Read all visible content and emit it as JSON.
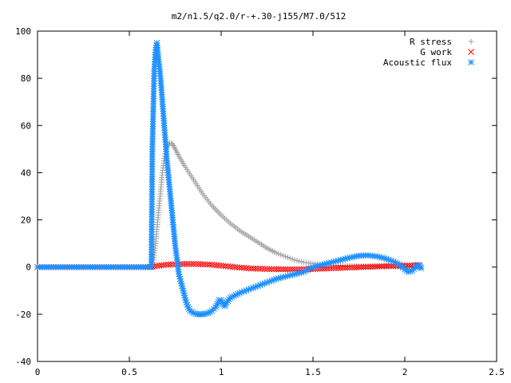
{
  "chart_data": {
    "type": "scatter",
    "title": "m2/n1.5/q2.0/r-+.30-j155/M7.0/512",
    "xlabel": "",
    "ylabel": "",
    "xlim": [
      0,
      2.5
    ],
    "ylim": [
      -40,
      100
    ],
    "x_ticks": [
      0,
      0.5,
      1,
      1.5,
      2,
      2.5
    ],
    "x_tick_labels": [
      "0",
      "0.5",
      "1",
      "1.5",
      "2",
      "2.5"
    ],
    "y_ticks": [
      -40,
      -20,
      0,
      20,
      40,
      60,
      80,
      100
    ],
    "y_tick_labels": [
      "-40",
      "-20",
      "0",
      "20",
      "40",
      "60",
      "80",
      "100"
    ],
    "grid": false,
    "legend_position": "top-right",
    "series": [
      {
        "name": "R stress",
        "marker": "plus",
        "color": "#a0a0a0",
        "points": [
          [
            0.0,
            0
          ],
          [
            0.1,
            0
          ],
          [
            0.2,
            0
          ],
          [
            0.3,
            0
          ],
          [
            0.4,
            0
          ],
          [
            0.5,
            0
          ],
          [
            0.6,
            0
          ],
          [
            0.62,
            0
          ],
          [
            0.635,
            4
          ],
          [
            0.64,
            8
          ],
          [
            0.645,
            12
          ],
          [
            0.65,
            16
          ],
          [
            0.655,
            20
          ],
          [
            0.66,
            24
          ],
          [
            0.665,
            28
          ],
          [
            0.67,
            32
          ],
          [
            0.675,
            36
          ],
          [
            0.68,
            40
          ],
          [
            0.685,
            43
          ],
          [
            0.69,
            46
          ],
          [
            0.695,
            48
          ],
          [
            0.7,
            50
          ],
          [
            0.71,
            51.5
          ],
          [
            0.72,
            52.5
          ],
          [
            0.73,
            52.5
          ],
          [
            0.74,
            51.5
          ],
          [
            0.75,
            50
          ],
          [
            0.77,
            47
          ],
          [
            0.8,
            43
          ],
          [
            0.85,
            37
          ],
          [
            0.9,
            31
          ],
          [
            0.95,
            26
          ],
          [
            1.0,
            22
          ],
          [
            1.05,
            18.5
          ],
          [
            1.1,
            15.5
          ],
          [
            1.15,
            13
          ],
          [
            1.2,
            10.5
          ],
          [
            1.25,
            8
          ],
          [
            1.3,
            6
          ],
          [
            1.35,
            4.5
          ],
          [
            1.4,
            3
          ],
          [
            1.45,
            2
          ],
          [
            1.5,
            1.5
          ],
          [
            1.55,
            1
          ],
          [
            1.6,
            0.8
          ],
          [
            1.7,
            0.5
          ],
          [
            1.8,
            0.3
          ],
          [
            1.9,
            0.2
          ],
          [
            2.0,
            0.1
          ],
          [
            2.08,
            0.05
          ]
        ]
      },
      {
        "name": "G work",
        "marker": "cross",
        "color": "#ff0000",
        "points": [
          [
            0.0,
            0
          ],
          [
            0.1,
            0
          ],
          [
            0.2,
            0
          ],
          [
            0.3,
            0
          ],
          [
            0.4,
            0
          ],
          [
            0.5,
            0
          ],
          [
            0.6,
            0
          ],
          [
            0.65,
            0.5
          ],
          [
            0.7,
            1
          ],
          [
            0.75,
            1.2
          ],
          [
            0.8,
            1.3
          ],
          [
            0.85,
            1.3
          ],
          [
            0.9,
            1.2
          ],
          [
            0.95,
            1.0
          ],
          [
            1.0,
            0.6
          ],
          [
            1.05,
            0.2
          ],
          [
            1.1,
            -0.2
          ],
          [
            1.15,
            -0.5
          ],
          [
            1.2,
            -0.7
          ],
          [
            1.3,
            -0.9
          ],
          [
            1.4,
            -1.0
          ],
          [
            1.5,
            -0.8
          ],
          [
            1.6,
            -0.5
          ],
          [
            1.7,
            -0.2
          ],
          [
            1.8,
            0.1
          ],
          [
            1.9,
            0.4
          ],
          [
            2.0,
            0.6
          ],
          [
            2.05,
            0.7
          ],
          [
            2.08,
            0.7
          ]
        ]
      },
      {
        "name": "Acoustic flux",
        "marker": "star",
        "color": "#1e90ff",
        "points": [
          [
            0.0,
            0
          ],
          [
            0.05,
            0
          ],
          [
            0.1,
            0
          ],
          [
            0.15,
            0
          ],
          [
            0.2,
            0
          ],
          [
            0.25,
            0
          ],
          [
            0.3,
            0
          ],
          [
            0.35,
            0
          ],
          [
            0.4,
            0
          ],
          [
            0.45,
            0
          ],
          [
            0.5,
            0
          ],
          [
            0.55,
            0
          ],
          [
            0.6,
            0
          ],
          [
            0.62,
            0
          ],
          [
            0.625,
            50
          ],
          [
            0.635,
            82
          ],
          [
            0.64,
            89
          ],
          [
            0.645,
            93
          ],
          [
            0.65,
            95
          ],
          [
            0.655,
            91
          ],
          [
            0.66,
            87
          ],
          [
            0.665,
            84
          ],
          [
            0.67,
            80
          ],
          [
            0.675,
            75
          ],
          [
            0.68,
            70
          ],
          [
            0.685,
            65
          ],
          [
            0.69,
            60
          ],
          [
            0.695,
            55
          ],
          [
            0.7,
            50
          ],
          [
            0.705,
            45
          ],
          [
            0.71,
            41
          ],
          [
            0.715,
            37
          ],
          [
            0.72,
            33
          ],
          [
            0.725,
            29
          ],
          [
            0.73,
            25
          ],
          [
            0.735,
            21
          ],
          [
            0.74,
            17
          ],
          [
            0.745,
            13
          ],
          [
            0.75,
            9
          ],
          [
            0.755,
            6
          ],
          [
            0.76,
            3
          ],
          [
            0.765,
            0
          ],
          [
            0.77,
            -3
          ],
          [
            0.78,
            -6
          ],
          [
            0.79,
            -9
          ],
          [
            0.8,
            -12
          ],
          [
            0.81,
            -15
          ],
          [
            0.82,
            -17
          ],
          [
            0.83,
            -18.5
          ],
          [
            0.85,
            -19.5
          ],
          [
            0.87,
            -20
          ],
          [
            0.9,
            -20
          ],
          [
            0.93,
            -19.5
          ],
          [
            0.95,
            -18.5
          ],
          [
            0.97,
            -17
          ],
          [
            0.98,
            -15.5
          ],
          [
            0.99,
            -14
          ],
          [
            1.0,
            -14
          ],
          [
            1.01,
            -15.5
          ],
          [
            1.02,
            -16.5
          ],
          [
            1.03,
            -15
          ],
          [
            1.05,
            -13
          ],
          [
            1.1,
            -11
          ],
          [
            1.15,
            -9.5
          ],
          [
            1.2,
            -8
          ],
          [
            1.25,
            -6.5
          ],
          [
            1.3,
            -5
          ],
          [
            1.35,
            -4
          ],
          [
            1.4,
            -3
          ],
          [
            1.45,
            -2
          ],
          [
            1.5,
            0
          ],
          [
            1.55,
            1
          ],
          [
            1.6,
            2
          ],
          [
            1.65,
            3
          ],
          [
            1.7,
            4
          ],
          [
            1.75,
            4.8
          ],
          [
            1.8,
            5
          ],
          [
            1.85,
            4.5
          ],
          [
            1.9,
            3.5
          ],
          [
            1.95,
            2
          ],
          [
            1.98,
            0.5
          ],
          [
            2.0,
            -1
          ],
          [
            2.02,
            -2
          ],
          [
            2.04,
            -1.5
          ],
          [
            2.06,
            0
          ],
          [
            2.07,
            1
          ],
          [
            2.08,
            0.5
          ],
          [
            2.09,
            -0.5
          ]
        ]
      }
    ]
  }
}
